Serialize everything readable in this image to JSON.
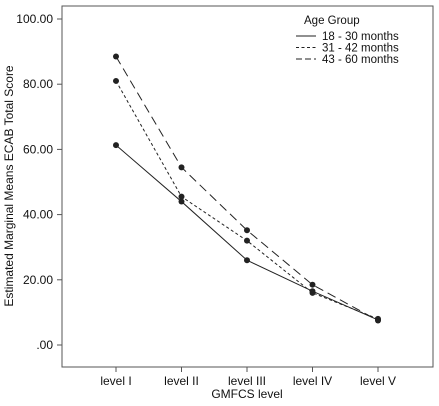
{
  "chart_data": {
    "type": "line",
    "xlabel": "GMFCS level",
    "ylabel": "Estimated Marginal Means ECAB Total Score",
    "categories": [
      "level I",
      "level II",
      "level III",
      "level IV",
      "level V"
    ],
    "y_ticks": [
      ".00",
      "20.00",
      "40.00",
      "60.00",
      "80.00",
      "100.00"
    ],
    "ylim": [
      0,
      100
    ],
    "grid": false,
    "legend_title": "Age Group",
    "legend_position": "top-right",
    "series": [
      {
        "name": "18 - 30 months",
        "line_style": "solid",
        "values": [
          61.3,
          44.0,
          26.0,
          16.5,
          7.7
        ]
      },
      {
        "name": "31 - 42 months",
        "line_style": "dotted",
        "values": [
          81.0,
          45.5,
          32.0,
          16.0,
          8.0
        ]
      },
      {
        "name": "43 - 60 months",
        "line_style": "dashed",
        "values": [
          88.5,
          54.5,
          35.2,
          18.5,
          7.5
        ]
      }
    ],
    "colors": {
      "line": "#222222",
      "plot_border": "#555555",
      "background": "#ffffff"
    }
  }
}
